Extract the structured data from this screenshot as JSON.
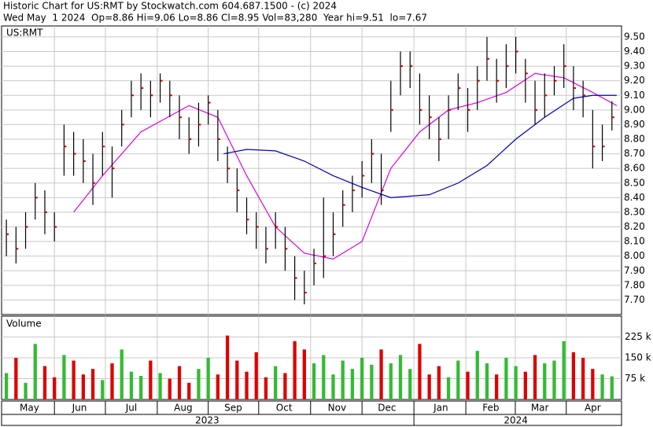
{
  "header": {
    "line1": "Historic Chart for US:RMT by Stockwatch.com 604.687.1500 - (c) 2024",
    "line2": "Wed May  1 2024  Op=8.86 Hi=9.06 Lo=8.86 Cl=8.95 Vol=83,280  Year hi=9.51  lo=7.67"
  },
  "chart_data": [
    {
      "type": "ohlc",
      "label": "US:RMT",
      "bar_color": "#000000",
      "close_color": "#cc0000",
      "xlim": [
        -0.5,
        64
      ],
      "ylim": [
        7.6,
        9.575
      ],
      "yticks": [
        {
          "value": 7.7,
          "label": "7.70"
        },
        {
          "value": 7.8,
          "label": "7.80"
        },
        {
          "value": 7.9,
          "label": "7.90"
        },
        {
          "value": 8.0,
          "label": "8.00"
        },
        {
          "value": 8.1,
          "label": "8.10"
        },
        {
          "value": 8.2,
          "label": "8.20"
        },
        {
          "value": 8.3,
          "label": "8.30"
        },
        {
          "value": 8.4,
          "label": "8.40"
        },
        {
          "value": 8.5,
          "label": "8.50"
        },
        {
          "value": 8.6,
          "label": "8.60"
        },
        {
          "value": 8.7,
          "label": "8.70"
        },
        {
          "value": 8.8,
          "label": "8.80"
        },
        {
          "value": 8.9,
          "label": "8.90"
        },
        {
          "value": 9.0,
          "label": "9.00"
        },
        {
          "value": 9.1,
          "label": "9.10"
        },
        {
          "value": 9.2,
          "label": "9.20"
        },
        {
          "value": 9.3,
          "label": "9.30"
        },
        {
          "value": 9.4,
          "label": "9.40"
        },
        {
          "value": 9.5,
          "label": "9.50"
        }
      ],
      "close": [
        8.15,
        8.05,
        8.2,
        8.4,
        8.3,
        8.2,
        8.75,
        8.7,
        8.65,
        8.5,
        8.75,
        8.6,
        8.9,
        9.1,
        9.15,
        9.1,
        9.2,
        9.1,
        8.95,
        8.8,
        8.9,
        9.05,
        8.8,
        8.6,
        8.45,
        8.25,
        8.2,
        8.05,
        8.2,
        8.05,
        7.85,
        7.75,
        7.95,
        8.0,
        8.15,
        8.35,
        8.45,
        8.55,
        8.7,
        8.45,
        9.0,
        9.3,
        9.3,
        9.0,
        8.95,
        8.8,
        9.0,
        9.15,
        9.0,
        9.2,
        9.35,
        9.2,
        9.3,
        9.4,
        9.25,
        9.0,
        9.1,
        9.2,
        9.3,
        9.15,
        9.1,
        8.75,
        8.75,
        8.95
      ],
      "high": [
        8.25,
        8.2,
        8.3,
        8.5,
        8.45,
        8.3,
        8.9,
        8.85,
        8.8,
        8.7,
        8.85,
        8.75,
        9.0,
        9.2,
        9.25,
        9.2,
        9.25,
        9.2,
        9.1,
        8.95,
        9.05,
        9.1,
        9.0,
        8.75,
        8.6,
        8.4,
        8.3,
        8.2,
        8.3,
        8.2,
        8.0,
        7.9,
        8.05,
        8.4,
        8.3,
        8.45,
        8.55,
        8.65,
        8.8,
        8.7,
        9.2,
        9.4,
        9.4,
        9.25,
        9.1,
        8.95,
        9.1,
        9.25,
        9.15,
        9.3,
        9.5,
        9.35,
        9.45,
        9.5,
        9.35,
        9.2,
        9.25,
        9.3,
        9.45,
        9.3,
        9.2,
        9.0,
        8.9,
        9.06
      ],
      "low": [
        8.0,
        7.95,
        8.05,
        8.25,
        8.15,
        8.1,
        8.55,
        8.55,
        8.5,
        8.35,
        8.55,
        8.4,
        8.75,
        8.95,
        9.0,
        8.95,
        9.05,
        8.95,
        8.8,
        8.7,
        8.75,
        8.9,
        8.65,
        8.5,
        8.3,
        8.15,
        8.05,
        7.95,
        8.05,
        7.9,
        7.7,
        7.67,
        7.8,
        7.85,
        8.0,
        8.2,
        8.3,
        8.4,
        8.5,
        8.35,
        8.85,
        9.1,
        9.15,
        8.9,
        8.8,
        8.65,
        8.8,
        9.0,
        8.85,
        9.0,
        9.2,
        9.05,
        9.15,
        9.25,
        9.05,
        8.9,
        8.95,
        9.1,
        9.15,
        9.0,
        8.95,
        8.6,
        8.65,
        8.86
      ],
      "series": [
        {
          "color": "#e000e0",
          "x": [
            7,
            10,
            14,
            19,
            22,
            25,
            28,
            31,
            34,
            37,
            40,
            43,
            46,
            49,
            52,
            55,
            58,
            61,
            63.5
          ],
          "values": [
            8.3,
            8.55,
            8.85,
            9.03,
            8.95,
            8.55,
            8.2,
            8.02,
            7.98,
            8.1,
            8.6,
            8.85,
            9.0,
            9.05,
            9.12,
            9.25,
            9.22,
            9.12,
            9.03
          ]
        },
        {
          "color": "#0000c0",
          "x": [
            22.6,
            25,
            28,
            31,
            34,
            37,
            40,
            44,
            47,
            50,
            53,
            56,
            59,
            61,
            63.5
          ],
          "values": [
            8.7,
            8.73,
            8.72,
            8.65,
            8.55,
            8.47,
            8.4,
            8.42,
            8.5,
            8.62,
            8.8,
            8.95,
            9.08,
            9.1,
            9.1
          ]
        }
      ]
    },
    {
      "type": "bar",
      "title": "Volume",
      "up_color": "#33bb33",
      "down_color": "#dd0000",
      "ylim": [
        0,
        300000
      ],
      "yticks": [
        {
          "value": 75000,
          "label": "75 k"
        },
        {
          "value": 150000,
          "label": "150 k"
        },
        {
          "value": 225000,
          "label": "225 k"
        }
      ],
      "values": [
        95000,
        150000,
        60000,
        200000,
        120000,
        80000,
        160000,
        140000,
        90000,
        110000,
        70000,
        130000,
        180000,
        100000,
        85000,
        140000,
        95000,
        75000,
        120000,
        60000,
        110000,
        150000,
        90000,
        230000,
        140000,
        100000,
        170000,
        80000,
        120000,
        95000,
        210000,
        180000,
        130000,
        160000,
        90000,
        140000,
        110000,
        150000,
        125000,
        180000,
        130000,
        160000,
        110000,
        200000,
        90000,
        120000,
        80000,
        140000,
        100000,
        175000,
        130000,
        90000,
        150000,
        120000,
        100000,
        160000,
        130000,
        140000,
        210000,
        170000,
        150000,
        110000,
        90000,
        83280
      ]
    }
  ],
  "x_axis": {
    "ticks": [
      {
        "value": 2.4,
        "label": "May"
      },
      {
        "value": 7.6,
        "label": "Jun"
      },
      {
        "value": 13.0,
        "label": "Jul"
      },
      {
        "value": 18.4,
        "label": "Aug"
      },
      {
        "value": 23.6,
        "label": "Sep"
      },
      {
        "value": 28.9,
        "label": "Oct"
      },
      {
        "value": 34.4,
        "label": "Nov"
      },
      {
        "value": 39.6,
        "label": "Dec"
      },
      {
        "value": 45.2,
        "label": "Jan"
      },
      {
        "value": 50.4,
        "label": "Feb"
      },
      {
        "value": 55.5,
        "label": "Mar"
      },
      {
        "value": 61.0,
        "label": "Apr"
      }
    ],
    "years": [
      {
        "value": 20.9,
        "label": "2023"
      },
      {
        "value": 53,
        "label": "2024"
      }
    ]
  }
}
